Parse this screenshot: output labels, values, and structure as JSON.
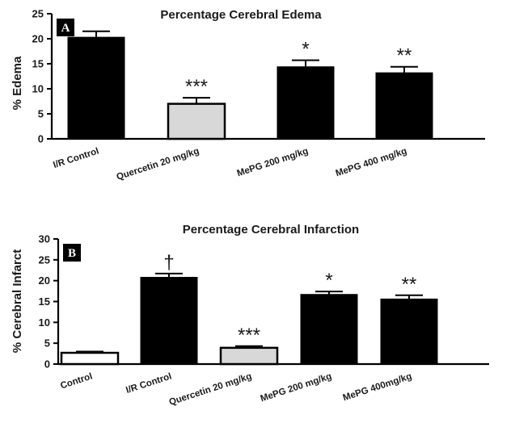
{
  "chart_data": [
    {
      "type": "bar",
      "panel_label": "A",
      "title": "Percentage Cerebral Edema",
      "ylabel": "% Edema",
      "ylim": [
        0,
        25
      ],
      "yticks": [
        "0",
        "5",
        "10",
        "15",
        "20",
        "25"
      ],
      "categories": [
        "I/R Control",
        "Quercetin 20 mg/kg",
        "MePG 200 mg/kg",
        "MePG 400 mg/kg"
      ],
      "values": [
        20.3,
        7.0,
        14.4,
        13.2
      ],
      "errors": [
        1.2,
        1.2,
        1.3,
        1.2
      ],
      "significance": [
        "",
        "***",
        "*",
        "**"
      ],
      "bar_colors": [
        "#000000",
        "#d8d8d8",
        "#000000",
        "#000000"
      ]
    },
    {
      "type": "bar",
      "panel_label": "B",
      "title": "Percentage Cerebral Infarction",
      "ylabel": "% Cerebral Infarct",
      "ylim": [
        0,
        30
      ],
      "yticks": [
        "0",
        "5",
        "10",
        "15",
        "20",
        "25",
        "30"
      ],
      "categories": [
        "Control",
        "I/R Control",
        "Quercetin 20 mg/kg",
        "MePG 200 mg/kg",
        "MePG 400mg/kg"
      ],
      "values": [
        2.7,
        20.8,
        3.9,
        16.7,
        15.6
      ],
      "errors": [
        0.3,
        0.9,
        0.4,
        0.7,
        0.9
      ],
      "significance": [
        "",
        "†",
        "***",
        "*",
        "**"
      ],
      "bar_colors": [
        "#ffffff",
        "#000000",
        "#d8d8d8",
        "#000000",
        "#000000"
      ]
    }
  ]
}
